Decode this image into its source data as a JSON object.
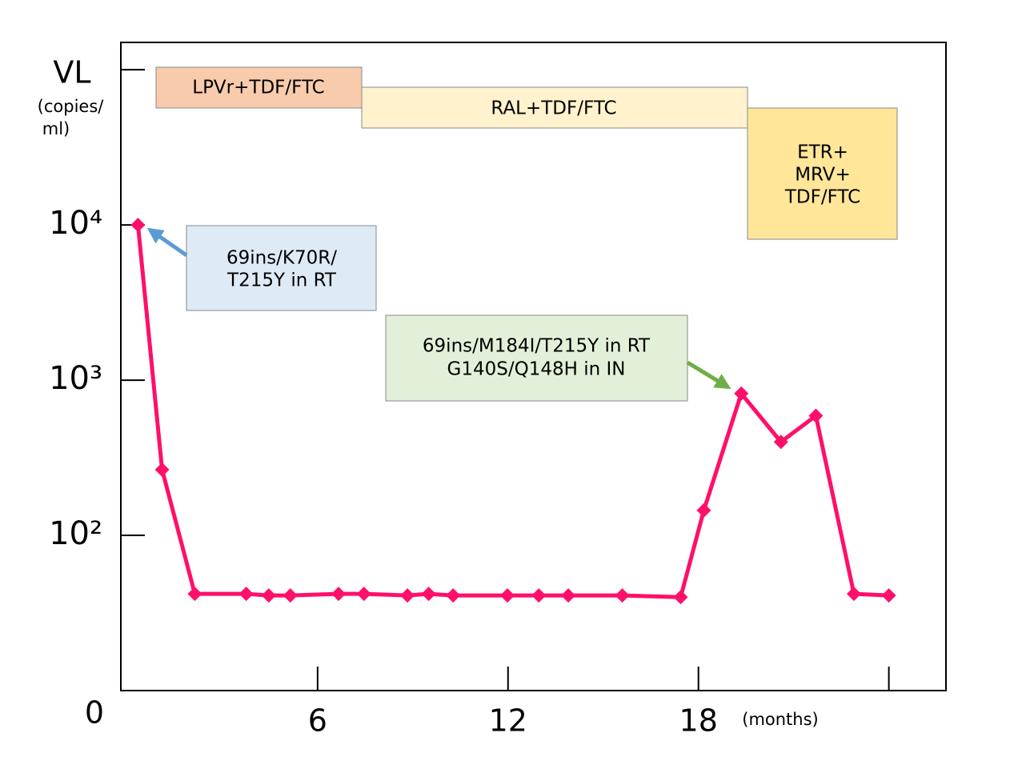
{
  "chart_data": {
    "type": "line",
    "yscale": "log",
    "y_label_lines": [
      "VL",
      "(copies/",
      "ml)"
    ],
    "x_label": "(months)",
    "origin_label": "0",
    "xlim": [
      -0.2,
      25.8
    ],
    "xticks": [
      6,
      12,
      18,
      {
        "value": 24,
        "label": null
      }
    ],
    "ylim": [
      10,
      150000
    ],
    "yticks": [
      {
        "value": 100,
        "label": "10²"
      },
      {
        "value": 1000,
        "label": "10³"
      },
      {
        "value": 10000,
        "label": "10⁴"
      },
      {
        "value": 100000,
        "label": null
      }
    ],
    "series": [
      {
        "name": null,
        "color": "#ff0f6a",
        "x": [
          0.34,
          1.1,
          2.13,
          3.75,
          4.46,
          5.14,
          6.66,
          7.46,
          8.83,
          9.5,
          10.27,
          11.98,
          12.97,
          13.9,
          15.6,
          17.44,
          18.17,
          19.35,
          20.6,
          21.7,
          22.9,
          24.0
        ],
        "values": [
          10000,
          265,
          42,
          42,
          41,
          41,
          42,
          42,
          41,
          42,
          41,
          41,
          41,
          41,
          41,
          40,
          145,
          820,
          400,
          590,
          42,
          41
        ]
      }
    ],
    "regimens": [
      {
        "lines": [
          "LPVr+TDF/FTC"
        ],
        "color": "#f8cbad"
      },
      {
        "lines": [
          "RAL+TDF/FTC"
        ],
        "color": "#fff2cc"
      },
      {
        "lines": [
          "ETR+",
          "MRV+",
          "TDF/FTC"
        ],
        "color": "#ffe699"
      }
    ],
    "mutations": [
      {
        "lines": [
          "69ins/K70R/",
          "T215Y in RT"
        ],
        "color": "#deebf7",
        "arrow_color": "#5b9bd5"
      },
      {
        "lines": [
          "69ins/M184I/T215Y in RT",
          "G140S/Q148H in IN"
        ],
        "color": "#e2f0d9",
        "arrow_color": "#70ad47"
      }
    ]
  }
}
